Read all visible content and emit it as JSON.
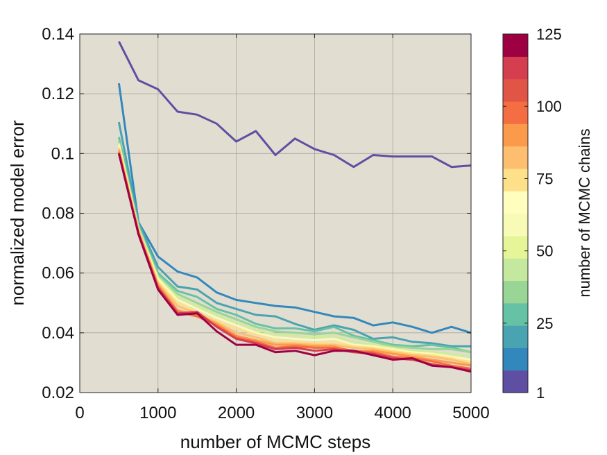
{
  "chart_data": {
    "type": "line",
    "xlabel": "number of MCMC steps",
    "ylabel": "normalized model error",
    "xlim": [
      0,
      5000
    ],
    "ylim": [
      0.02,
      0.14
    ],
    "x_ticks": [
      0,
      1000,
      2000,
      3000,
      4000,
      5000
    ],
    "y_ticks": [
      0.02,
      0.04,
      0.06,
      0.08,
      0.1,
      0.12,
      0.14
    ],
    "x_tick_labels": [
      "0",
      "1000",
      "2000",
      "3000",
      "4000",
      "5000"
    ],
    "y_tick_labels": [
      "0.02",
      "0.04",
      "0.06",
      "0.08",
      "0.1",
      "0.12",
      "0.14"
    ],
    "grid": true,
    "background_color": "#e2ddd1",
    "x": [
      500,
      750,
      1000,
      1250,
      1500,
      1750,
      2000,
      2250,
      2500,
      2750,
      3000,
      3250,
      3500,
      3750,
      4000,
      4250,
      4500,
      4750,
      5000
    ],
    "series": [
      {
        "chains": 1,
        "color": "#5e4fa2",
        "values": [
          0.1375,
          0.1245,
          0.1215,
          0.114,
          0.113,
          0.11,
          0.104,
          0.1075,
          0.0995,
          0.105,
          0.1015,
          0.0995,
          0.0955,
          0.0995,
          0.099,
          0.099,
          0.099,
          0.0955,
          0.096
        ]
      },
      {
        "chains": 10,
        "color": "#3288bd",
        "values": [
          0.1235,
          0.077,
          0.0655,
          0.0605,
          0.0585,
          0.0535,
          0.051,
          0.05,
          0.049,
          0.0485,
          0.047,
          0.0455,
          0.045,
          0.0425,
          0.0435,
          0.042,
          0.04,
          0.042,
          0.04
        ]
      },
      {
        "chains": 20,
        "color": "#4aa3b0",
        "values": [
          0.1105,
          0.077,
          0.062,
          0.0555,
          0.0545,
          0.05,
          0.048,
          0.046,
          0.0455,
          0.043,
          0.041,
          0.0425,
          0.041,
          0.038,
          0.0385,
          0.037,
          0.0365,
          0.0355,
          0.0355
        ]
      },
      {
        "chains": 30,
        "color": "#66c2a5",
        "values": [
          0.1055,
          0.076,
          0.06,
          0.054,
          0.052,
          0.048,
          0.046,
          0.043,
          0.0415,
          0.0415,
          0.0405,
          0.042,
          0.039,
          0.0375,
          0.036,
          0.0355,
          0.036,
          0.035,
          0.0335
        ]
      },
      {
        "chains": 40,
        "color": "#99d594",
        "values": [
          0.104,
          0.0755,
          0.059,
          0.053,
          0.05,
          0.047,
          0.0445,
          0.042,
          0.0405,
          0.04,
          0.0395,
          0.04,
          0.0385,
          0.037,
          0.0355,
          0.035,
          0.0345,
          0.0345,
          0.0335
        ]
      },
      {
        "chains": 50,
        "color": "#d0ec9a",
        "values": [
          0.1035,
          0.075,
          0.0585,
          0.052,
          0.049,
          0.046,
          0.0435,
          0.041,
          0.0395,
          0.039,
          0.0385,
          0.039,
          0.037,
          0.036,
          0.035,
          0.034,
          0.0335,
          0.033,
          0.032
        ]
      },
      {
        "chains": 60,
        "color": "#f8fbb6",
        "values": [
          0.103,
          0.0745,
          0.058,
          0.051,
          0.048,
          0.045,
          0.0425,
          0.04,
          0.0385,
          0.038,
          0.0375,
          0.038,
          0.036,
          0.0355,
          0.0345,
          0.0335,
          0.033,
          0.032,
          0.031
        ]
      },
      {
        "chains": 70,
        "color": "#fee08b",
        "values": [
          0.102,
          0.074,
          0.057,
          0.05,
          0.047,
          0.044,
          0.0415,
          0.0395,
          0.0375,
          0.037,
          0.0365,
          0.037,
          0.0355,
          0.035,
          0.034,
          0.033,
          0.0325,
          0.0315,
          0.03
        ]
      },
      {
        "chains": 80,
        "color": "#fdbf6f",
        "values": [
          0.1015,
          0.0745,
          0.0565,
          0.049,
          0.0465,
          0.0435,
          0.04,
          0.0385,
          0.0365,
          0.0365,
          0.036,
          0.036,
          0.035,
          0.0345,
          0.0335,
          0.0325,
          0.032,
          0.031,
          0.0295
        ]
      },
      {
        "chains": 90,
        "color": "#fc9a4c",
        "values": [
          0.101,
          0.0735,
          0.056,
          0.0475,
          0.046,
          0.043,
          0.039,
          0.0375,
          0.036,
          0.036,
          0.0355,
          0.0355,
          0.0335,
          0.034,
          0.033,
          0.032,
          0.031,
          0.03,
          0.029
        ]
      },
      {
        "chains": 100,
        "color": "#f46d43",
        "values": [
          0.1005,
          0.073,
          0.0555,
          0.047,
          0.0455,
          0.0425,
          0.0385,
          0.037,
          0.035,
          0.0355,
          0.035,
          0.035,
          0.034,
          0.0335,
          0.032,
          0.0315,
          0.0305,
          0.029,
          0.028
        ]
      },
      {
        "chains": 110,
        "color": "#d53e4f",
        "values": [
          0.1,
          0.0735,
          0.055,
          0.0465,
          0.047,
          0.042,
          0.038,
          0.0365,
          0.0345,
          0.035,
          0.034,
          0.0345,
          0.0335,
          0.033,
          0.0315,
          0.031,
          0.0295,
          0.0285,
          0.0275
        ]
      },
      {
        "chains": 125,
        "color": "#9e0142",
        "values": [
          0.1,
          0.073,
          0.0545,
          0.046,
          0.0465,
          0.0405,
          0.036,
          0.036,
          0.0335,
          0.034,
          0.0325,
          0.034,
          0.034,
          0.0325,
          0.031,
          0.0315,
          0.029,
          0.0285,
          0.027
        ]
      }
    ],
    "colorbar": {
      "label": "number of MCMC chains",
      "ticks": [
        1,
        25,
        50,
        75,
        100,
        125
      ],
      "tick_labels": [
        "1",
        "25",
        "50",
        "75",
        "100",
        "125"
      ],
      "colors": [
        "#5e4fa2",
        "#3288bd",
        "#4aa3b0",
        "#66c2a5",
        "#99d594",
        "#c4e89e",
        "#e6f598",
        "#f8fbb6",
        "#fffebe",
        "#fee08b",
        "#fdbf6f",
        "#fc9a4c",
        "#f46d43",
        "#e05545",
        "#d53e4f",
        "#9e0142"
      ]
    }
  }
}
